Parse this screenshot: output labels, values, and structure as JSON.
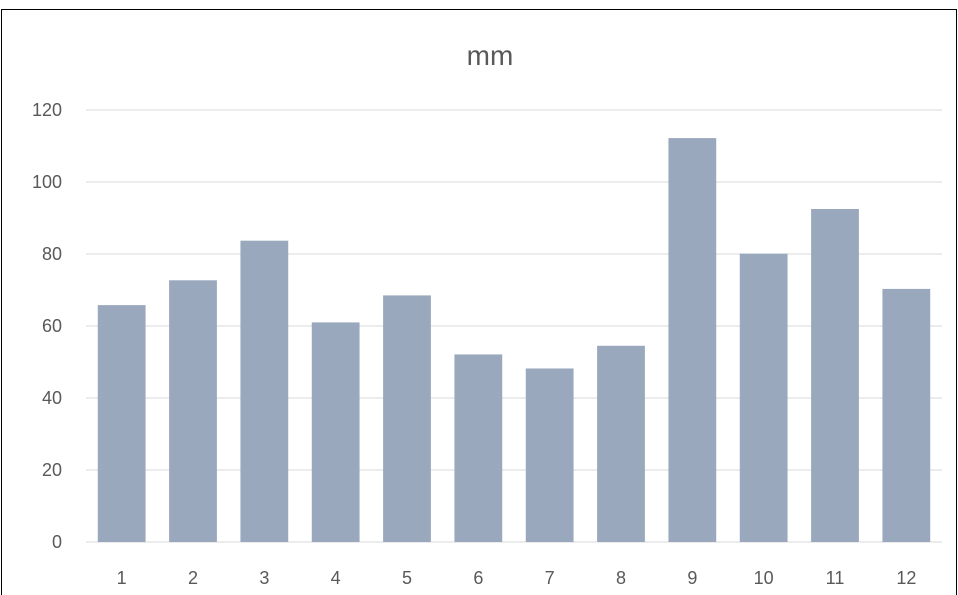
{
  "chart_data": {
    "type": "bar",
    "title": "mm",
    "xlabel": "",
    "ylabel": "",
    "categories": [
      "1",
      "2",
      "3",
      "4",
      "5",
      "6",
      "7",
      "8",
      "9",
      "10",
      "11",
      "12"
    ],
    "values": [
      65.8,
      72.7,
      83.7,
      61.0,
      68.5,
      52.1,
      48.2,
      54.5,
      112.2,
      80.1,
      92.5,
      70.3
    ],
    "ylim": [
      0,
      120
    ],
    "yticks": [
      "0",
      "20",
      "40",
      "60",
      "80",
      "100",
      "120"
    ],
    "grid": true,
    "legend": "none",
    "bar_color": "#9aa8bd",
    "grid_color": "#d9d9d9",
    "axis_color": "#d9d9d9",
    "text_color": "#595959"
  }
}
